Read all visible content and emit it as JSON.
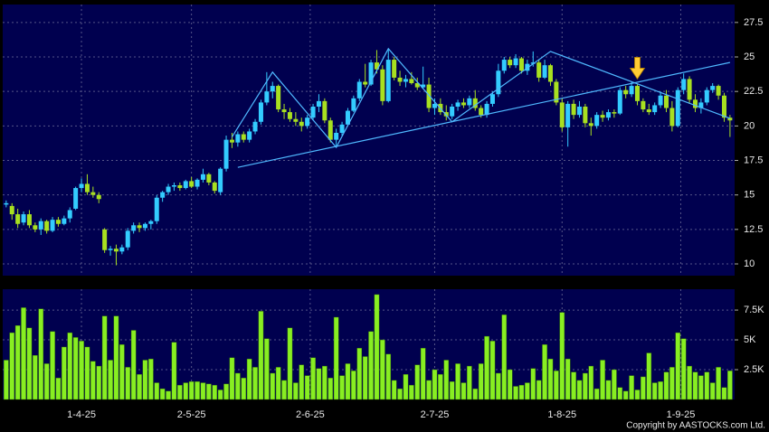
{
  "chart_data": [
    {
      "type": "candlestick",
      "xlim": [
        -0.6,
        125.8
      ],
      "ylim": [
        9.15,
        28.8
      ],
      "yticks": [
        10,
        12.5,
        15,
        17.5,
        20,
        22.5,
        25,
        27.5
      ],
      "grid": true,
      "up_color": "#33ccff",
      "down_color": "#a8e020",
      "ohlc": [
        [
          14.3,
          14.6,
          14.1,
          14.4
        ],
        [
          14.2,
          14.4,
          13.2,
          13.6
        ],
        [
          13.6,
          14.0,
          12.6,
          12.9
        ],
        [
          13.0,
          13.8,
          12.8,
          13.6
        ],
        [
          13.6,
          13.9,
          12.6,
          12.8
        ],
        [
          12.8,
          13.0,
          12.3,
          12.5
        ],
        [
          12.5,
          13.3,
          12.1,
          13.1
        ],
        [
          13.1,
          13.2,
          12.2,
          12.4
        ],
        [
          12.4,
          13.4,
          12.3,
          13.2
        ],
        [
          13.2,
          13.4,
          12.7,
          12.9
        ],
        [
          12.9,
          13.5,
          12.8,
          13.3
        ],
        [
          13.3,
          14.1,
          13.0,
          13.9
        ],
        [
          14.0,
          15.6,
          13.9,
          15.5
        ],
        [
          15.5,
          16.2,
          15.2,
          15.8
        ],
        [
          15.8,
          16.5,
          15.0,
          15.2
        ],
        [
          15.2,
          15.6,
          14.8,
          15.0
        ],
        [
          15.0,
          15.2,
          14.4,
          14.7
        ],
        [
          12.5,
          12.6,
          10.8,
          11.0
        ],
        [
          11.0,
          11.3,
          10.6,
          11.1
        ],
        [
          11.1,
          11.4,
          9.9,
          10.9
        ],
        [
          10.9,
          11.4,
          10.7,
          11.2
        ],
        [
          11.2,
          12.6,
          11.0,
          12.4
        ],
        [
          12.4,
          13.0,
          12.2,
          12.8
        ],
        [
          12.8,
          13.0,
          12.3,
          12.6
        ],
        [
          12.6,
          13.0,
          12.4,
          12.9
        ],
        [
          12.9,
          13.2,
          12.5,
          13.1
        ],
        [
          13.1,
          15.0,
          12.9,
          14.8
        ],
        [
          14.8,
          15.3,
          14.5,
          15.2
        ],
        [
          15.2,
          15.8,
          15.0,
          15.6
        ],
        [
          15.6,
          15.9,
          15.3,
          15.7
        ],
        [
          15.7,
          15.9,
          15.3,
          15.5
        ],
        [
          15.5,
          16.1,
          15.4,
          16.0
        ],
        [
          16.0,
          16.3,
          15.5,
          15.6
        ],
        [
          15.6,
          16.2,
          15.4,
          16.1
        ],
        [
          16.1,
          16.9,
          15.9,
          16.5
        ],
        [
          16.5,
          16.6,
          15.7,
          15.9
        ],
        [
          15.9,
          16.0,
          15.1,
          15.3
        ],
        [
          15.2,
          17.0,
          15.0,
          16.9
        ],
        [
          16.9,
          19.3,
          16.7,
          19.0
        ],
        [
          19.0,
          19.5,
          18.4,
          18.8
        ],
        [
          18.8,
          19.6,
          18.5,
          19.4
        ],
        [
          19.4,
          19.6,
          18.8,
          19.0
        ],
        [
          19.0,
          19.8,
          18.8,
          19.6
        ],
        [
          19.6,
          20.5,
          19.4,
          20.3
        ],
        [
          20.3,
          21.9,
          20.1,
          21.7
        ],
        [
          21.7,
          23.9,
          21.5,
          22.5
        ],
        [
          22.5,
          23.2,
          22.0,
          22.9
        ],
        [
          22.9,
          23.0,
          21.0,
          21.2
        ],
        [
          21.2,
          21.6,
          20.5,
          21.0
        ],
        [
          21.0,
          21.3,
          20.3,
          20.5
        ],
        [
          20.5,
          21.0,
          20.0,
          20.3
        ],
        [
          20.3,
          20.6,
          19.6,
          20.0
        ],
        [
          20.0,
          20.8,
          19.8,
          20.6
        ],
        [
          20.6,
          21.6,
          20.4,
          21.4
        ],
        [
          21.4,
          22.3,
          21.0,
          21.8
        ],
        [
          21.8,
          22.0,
          20.2,
          20.4
        ],
        [
          20.4,
          20.6,
          18.8,
          19.0
        ],
        [
          19.0,
          19.8,
          18.5,
          19.5
        ],
        [
          19.5,
          20.3,
          19.3,
          20.1
        ],
        [
          20.1,
          21.3,
          20.0,
          21.1
        ],
        [
          21.1,
          22.2,
          21.0,
          22.0
        ],
        [
          22.0,
          23.4,
          21.8,
          23.2
        ],
        [
          23.2,
          24.5,
          22.8,
          23.0
        ],
        [
          23.0,
          24.8,
          22.9,
          24.6
        ],
        [
          24.6,
          25.5,
          23.8,
          24.1
        ],
        [
          24.1,
          24.4,
          21.5,
          21.8
        ],
        [
          21.8,
          25.6,
          21.7,
          24.8
        ],
        [
          24.8,
          25.0,
          23.3,
          23.5
        ],
        [
          23.5,
          24.0,
          22.9,
          23.2
        ],
        [
          23.2,
          23.7,
          22.8,
          23.4
        ],
        [
          23.4,
          23.9,
          23.0,
          23.1
        ],
        [
          23.1,
          23.5,
          22.6,
          22.8
        ],
        [
          22.8,
          24.3,
          22.7,
          23.0
        ],
        [
          23.0,
          23.5,
          21.0,
          21.3
        ],
        [
          21.3,
          22.0,
          20.8,
          21.6
        ],
        [
          21.6,
          22.0,
          20.8,
          21.0
        ],
        [
          21.0,
          21.5,
          20.4,
          20.7
        ],
        [
          20.7,
          21.6,
          20.5,
          21.4
        ],
        [
          21.4,
          21.9,
          21.1,
          21.7
        ],
        [
          21.7,
          22.0,
          21.3,
          21.5
        ],
        [
          21.5,
          22.2,
          21.3,
          22.0
        ],
        [
          22.0,
          22.6,
          21.1,
          21.3
        ],
        [
          21.3,
          21.5,
          20.6,
          20.8
        ],
        [
          20.8,
          21.8,
          20.6,
          21.6
        ],
        [
          21.6,
          22.5,
          21.4,
          22.3
        ],
        [
          22.3,
          24.5,
          22.1,
          24.0
        ],
        [
          24.0,
          25.0,
          23.8,
          24.8
        ],
        [
          24.8,
          25.0,
          24.2,
          24.4
        ],
        [
          24.4,
          25.2,
          24.2,
          24.9
        ],
        [
          24.9,
          25.0,
          23.8,
          24.0
        ],
        [
          24.0,
          24.8,
          23.7,
          24.5
        ],
        [
          24.5,
          25.4,
          24.3,
          24.6
        ],
        [
          24.6,
          24.8,
          23.2,
          23.5
        ],
        [
          23.5,
          24.8,
          23.4,
          24.4
        ],
        [
          24.4,
          24.5,
          22.9,
          23.2
        ],
        [
          23.2,
          23.4,
          21.5,
          21.7
        ],
        [
          21.7,
          22.0,
          19.6,
          19.9
        ],
        [
          19.9,
          21.8,
          18.5,
          21.6
        ],
        [
          21.6,
          21.9,
          20.5,
          20.8
        ],
        [
          20.8,
          21.8,
          20.6,
          21.4
        ],
        [
          21.4,
          21.6,
          19.9,
          20.2
        ],
        [
          20.2,
          20.6,
          19.3,
          20.0
        ],
        [
          20.0,
          21.0,
          19.8,
          20.8
        ],
        [
          20.8,
          21.1,
          20.3,
          20.6
        ],
        [
          20.6,
          21.2,
          20.4,
          21.0
        ],
        [
          21.0,
          21.2,
          20.6,
          20.9
        ],
        [
          20.9,
          22.8,
          20.8,
          22.6
        ],
        [
          22.6,
          22.9,
          22.0,
          22.3
        ],
        [
          22.3,
          23.2,
          22.1,
          22.9
        ],
        [
          22.9,
          23.0,
          21.5,
          21.8
        ],
        [
          21.8,
          22.0,
          21.0,
          21.2
        ],
        [
          21.2,
          21.6,
          20.8,
          21.0
        ],
        [
          21.0,
          21.7,
          20.8,
          21.5
        ],
        [
          21.5,
          22.5,
          21.3,
          22.2
        ],
        [
          22.2,
          22.6,
          21.0,
          21.3
        ],
        [
          21.3,
          21.8,
          19.6,
          20.0
        ],
        [
          20.0,
          22.8,
          19.9,
          22.6
        ],
        [
          22.6,
          23.8,
          22.3,
          23.4
        ],
        [
          23.4,
          23.6,
          21.6,
          21.9
        ],
        [
          21.9,
          22.3,
          21.0,
          21.3
        ],
        [
          21.3,
          22.0,
          20.9,
          21.7
        ],
        [
          21.7,
          22.8,
          21.5,
          22.6
        ],
        [
          22.6,
          23.1,
          22.4,
          22.9
        ],
        [
          22.9,
          23.0,
          21.9,
          22.2
        ],
        [
          22.2,
          22.4,
          20.3,
          20.6
        ],
        [
          20.6,
          20.8,
          19.2,
          20.4
        ]
      ],
      "lines": [
        {
          "color": "#4fb8ff",
          "x": [
            40,
            125
          ],
          "y": [
            17.0,
            24.6
          ]
        },
        {
          "color": "#4fb8ff",
          "x": [
            39,
            46,
            57,
            66,
            77,
            94,
            125
          ],
          "y": [
            19.2,
            23.9,
            18.45,
            25.6,
            20.3,
            25.4,
            20.55
          ]
        }
      ],
      "marker": {
        "color": "#ffcc33",
        "x": 109,
        "y": 23.4
      }
    },
    {
      "type": "bar",
      "color": "#88ee22",
      "xlim": [
        -0.6,
        125.8
      ],
      "ylim": [
        0,
        9250
      ],
      "yticks": [
        {
          "value": 2500,
          "label": "2.5K"
        },
        {
          "value": 5000,
          "label": "5K"
        },
        {
          "value": 7500,
          "label": "7.5K"
        }
      ],
      "xticks": [
        {
          "value": 13,
          "label": "1-4-25"
        },
        {
          "value": 32,
          "label": "2-5-25"
        },
        {
          "value": 52.5,
          "label": "2-6-25"
        },
        {
          "value": 74,
          "label": "2-7-25"
        },
        {
          "value": 96,
          "label": "1-8-25"
        },
        {
          "value": 116.5,
          "label": "1-9-25"
        }
      ],
      "values": [
        3300,
        5600,
        6200,
        7700,
        6000,
        3700,
        7600,
        3000,
        5700,
        1800,
        4400,
        5600,
        5200,
        4900,
        4400,
        3200,
        2800,
        7000,
        3300,
        7000,
        4600,
        2700,
        5800,
        2100,
        3300,
        3400,
        1400,
        900,
        700,
        4800,
        1200,
        1400,
        1500,
        1500,
        1400,
        1300,
        1200,
        800,
        1300,
        3500,
        2200,
        1800,
        3400,
        2700,
        7400,
        5100,
        2200,
        2700,
        1600,
        6000,
        1400,
        2900,
        2000,
        3500,
        2600,
        2800,
        1800,
        6900,
        2000,
        3000,
        2400,
        4300,
        3600,
        5700,
        8800,
        5000,
        3800,
        1600,
        900,
        2100,
        1200,
        2900,
        4300,
        1600,
        2500,
        2100,
        3300,
        1500,
        3000,
        1400,
        2800,
        900,
        3000,
        5300,
        4900,
        2200,
        7100,
        2500,
        1100,
        1200,
        1400,
        2600,
        1600,
        4600,
        3400,
        2400,
        7300,
        3400,
        2300,
        1600,
        2200,
        2800,
        900,
        3300,
        1600,
        2500,
        1000,
        700,
        2000,
        800,
        1900,
        3900,
        1400,
        1500,
        2300,
        2700,
        5600,
        5100,
        2800,
        2300,
        2000,
        2300,
        1400,
        2700,
        1000,
        2400
      ]
    }
  ],
  "footer": {
    "copyright": "Copyright by AASTOCKS.com Ltd."
  }
}
